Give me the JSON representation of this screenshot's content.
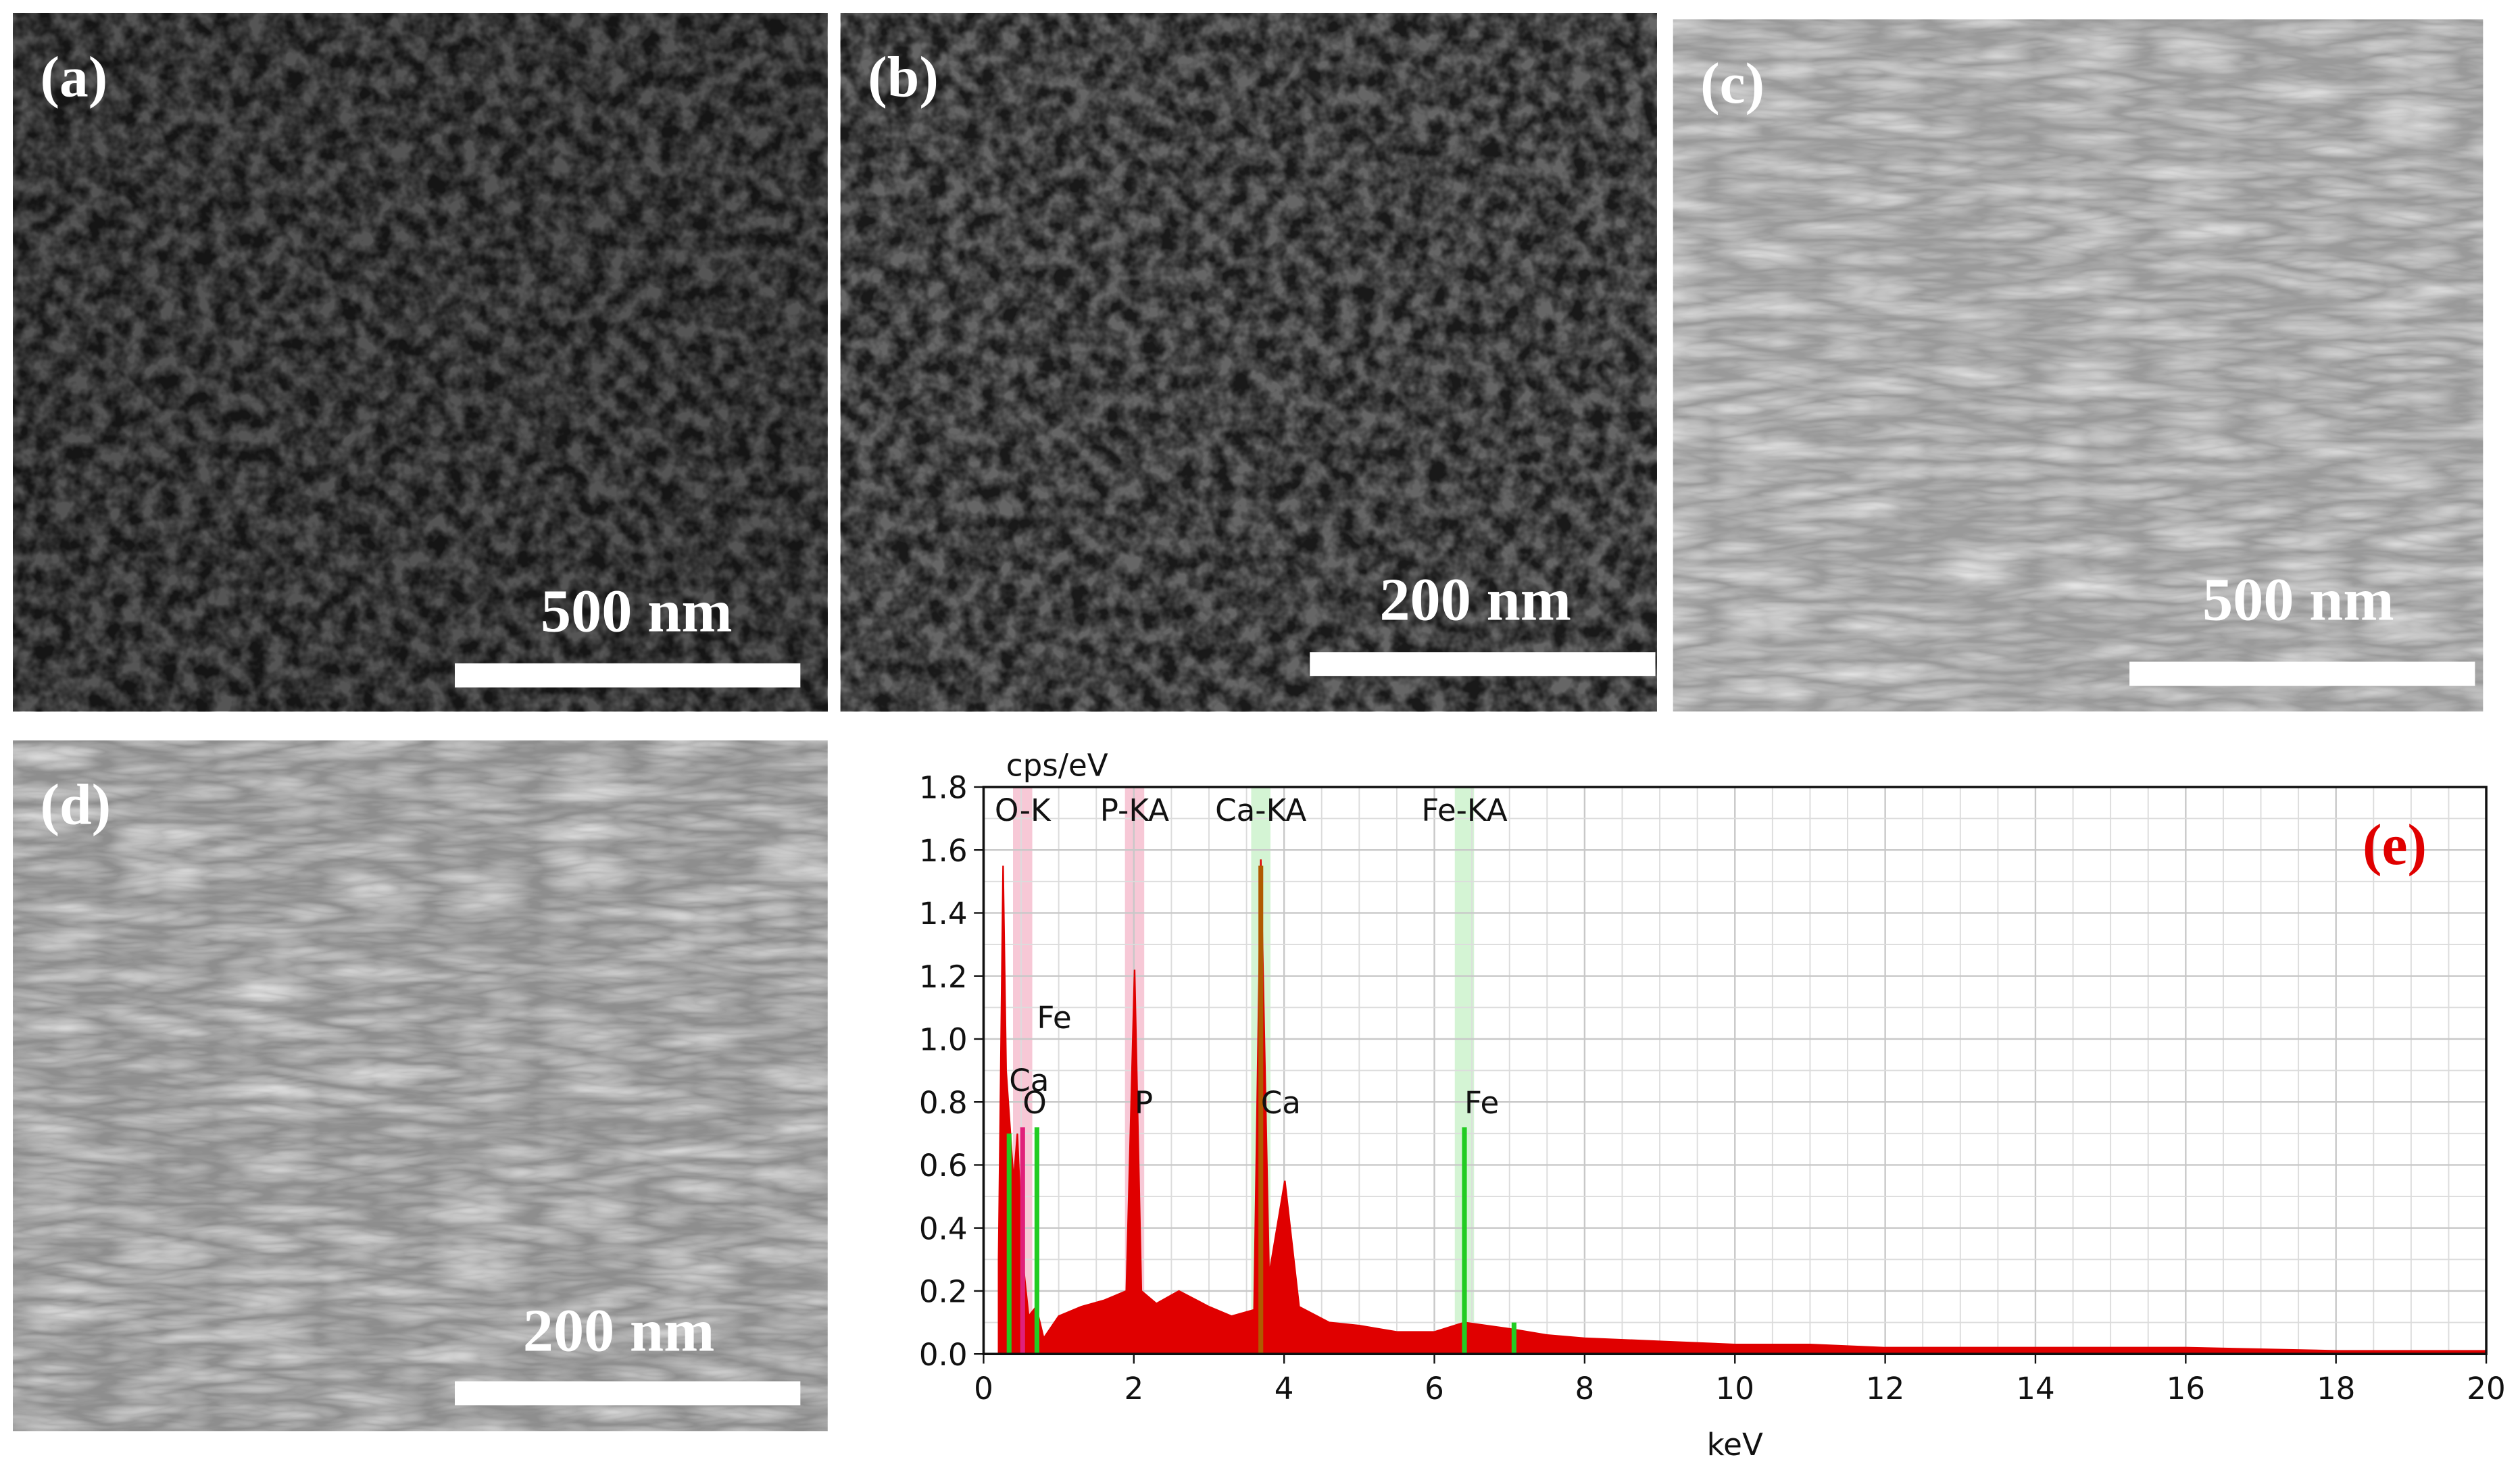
{
  "panels": [
    {
      "label": "(a)",
      "scale_bar": "500 nm"
    },
    {
      "label": "(b)",
      "scale_bar": "200 nm"
    },
    {
      "label": "(c)",
      "scale_bar": "500 nm"
    },
    {
      "label": "(d)",
      "scale_bar": "200 nm"
    }
  ],
  "chart_data": {
    "type": "area",
    "panel_label": "(e)",
    "y_label": "cps/eV",
    "x_label": "keV",
    "x": [
      0.2,
      0.26,
      0.3,
      0.4,
      0.45,
      0.52,
      0.6,
      0.7,
      0.8,
      1.0,
      1.3,
      1.6,
      1.9,
      2.01,
      2.1,
      2.3,
      2.6,
      3.0,
      3.3,
      3.6,
      3.69,
      3.8,
      4.01,
      4.2,
      4.6,
      5.0,
      5.5,
      6.0,
      6.4,
      7.0,
      7.5,
      8.0,
      9.0,
      10,
      11,
      12,
      14,
      16,
      18,
      20
    ],
    "series": [
      {
        "color": "#e00000",
        "values": [
          0.3,
          1.55,
          0.9,
          0.55,
          0.7,
          0.3,
          0.12,
          0.15,
          0.05,
          0.12,
          0.15,
          0.17,
          0.2,
          1.22,
          0.2,
          0.16,
          0.2,
          0.15,
          0.12,
          0.14,
          1.57,
          0.25,
          0.55,
          0.15,
          0.1,
          0.09,
          0.07,
          0.07,
          0.1,
          0.08,
          0.06,
          0.05,
          0.04,
          0.03,
          0.03,
          0.02,
          0.02,
          0.02,
          0.01,
          0.01
        ]
      }
    ],
    "markers": [
      {
        "x": 0.34,
        "value": 0.7,
        "color": "#22cc22"
      },
      {
        "x": 0.52,
        "value": 0.72,
        "color": "#e0207a"
      },
      {
        "x": 0.71,
        "value": 0.72,
        "color": "#22cc22"
      },
      {
        "x": 3.69,
        "value": 1.55,
        "color": "#b05a00"
      },
      {
        "x": 6.4,
        "value": 0.72,
        "color": "#22cc22"
      },
      {
        "x": 7.06,
        "value": 0.1,
        "color": "#22cc22"
      }
    ],
    "peak_labels": [
      {
        "text": "O-K",
        "x": 0.52,
        "color": "#f7c8d6"
      },
      {
        "text": "P-KA",
        "x": 2.01,
        "color": "#f7c8d6"
      },
      {
        "text": "Ca-KA",
        "x": 3.69,
        "color": "#d4f4d4"
      },
      {
        "text": "Fe-KA",
        "x": 6.4,
        "color": "#d4f4d4"
      }
    ],
    "element_labels": [
      {
        "text": "Fe",
        "x": 0.71,
        "y": 1.07
      },
      {
        "text": "Ca",
        "x": 0.34,
        "y": 0.87
      },
      {
        "text": "O",
        "x": 0.52,
        "y": 0.8
      },
      {
        "text": "P",
        "x": 2.01,
        "y": 0.8
      },
      {
        "text": "Ca",
        "x": 3.69,
        "y": 0.8
      },
      {
        "text": "Fe",
        "x": 6.4,
        "y": 0.8
      }
    ],
    "xlim": [
      0,
      20
    ],
    "ylim": [
      0,
      1.8
    ],
    "xticks": [
      0,
      2,
      4,
      6,
      8,
      10,
      12,
      14,
      16,
      18,
      20
    ],
    "yticks": [
      {
        "value": 0,
        "label": "0.0"
      },
      0.2,
      0.4,
      0.6,
      0.8,
      {
        "value": 1,
        "label": "1.0"
      },
      1.2,
      1.4,
      1.6,
      1.8
    ],
    "grid": true
  }
}
